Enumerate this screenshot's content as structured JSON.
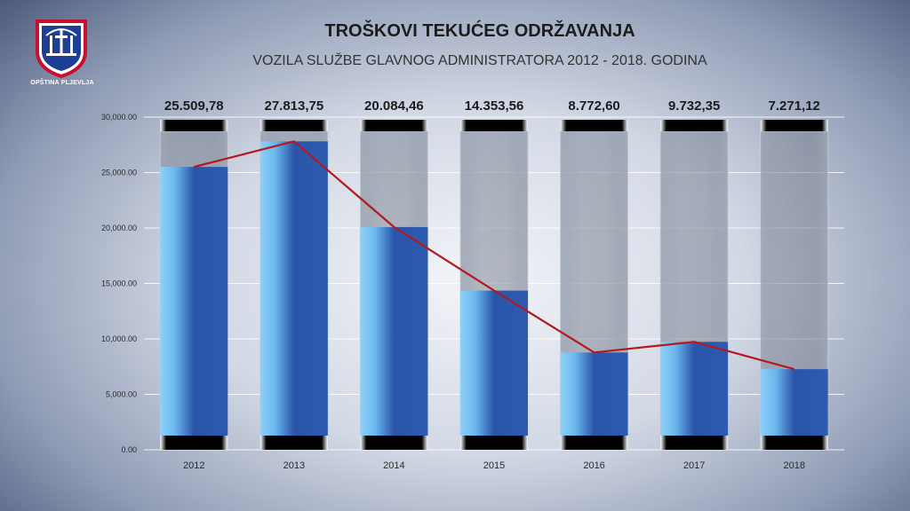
{
  "logo": {
    "caption": "OPŠTINA PLJEVLJA"
  },
  "colors": {
    "bar_dark": "#2a55a8",
    "bar_light": "#7dc6f5",
    "tube": "#8a93a4",
    "cap": "#000000",
    "line": "#b3191e",
    "grid": "#ffffff"
  },
  "chart_data": {
    "type": "bar",
    "title": "TROŠKOVI TEKUĆEG ODRŽAVANJA",
    "subtitle": "VOZILA SLUŽBE GLAVNOG ADMINISTRATORA 2012 - 2018. GODINA",
    "categories": [
      "2012",
      "2013",
      "2014",
      "2015",
      "2016",
      "2017",
      "2018"
    ],
    "values": [
      25509.78,
      27813.75,
      20084.46,
      14353.56,
      8772.6,
      9732.35,
      7271.12
    ],
    "data_labels": [
      "25.509,78",
      "27.813,75",
      "20.084,46",
      "14.353,56",
      "8.772,60",
      "9.732,35",
      "7.271,12"
    ],
    "ylim": [
      0,
      30000
    ],
    "yticks": [
      0,
      5000,
      10000,
      15000,
      20000,
      25000,
      30000
    ],
    "ytick_labels": [
      "0.00",
      "5,000.00",
      "10,000.00",
      "15,000.00",
      "20,000.00",
      "25,000.00",
      "30,000.00"
    ],
    "line_overlay": true,
    "grid": true,
    "legend": "none"
  }
}
